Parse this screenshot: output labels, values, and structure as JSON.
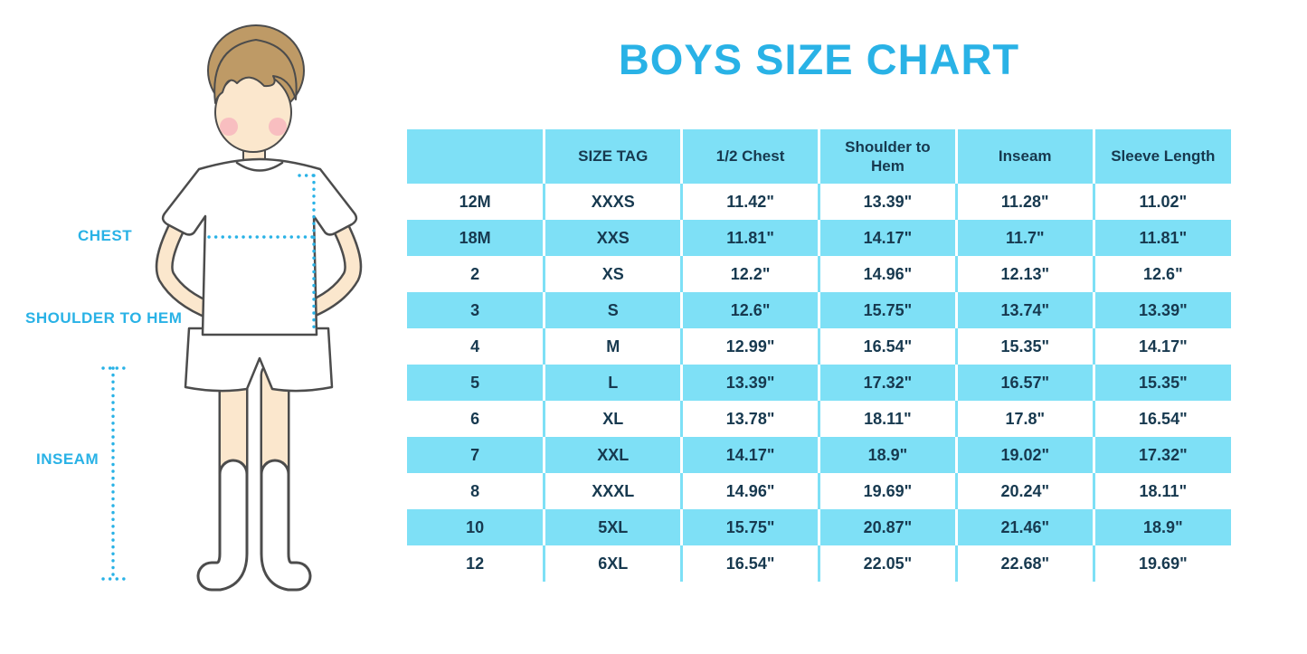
{
  "title": "BOYS SIZE CHART",
  "measurement_labels": {
    "chest": "CHEST",
    "shoulder_to_hem": "SHOULDER TO HEM",
    "inseam": "INSEAM"
  },
  "colors": {
    "accent": "#29B2E6",
    "row_blue": "#7EE0F6",
    "table_text": "#17394F"
  },
  "chart_data": {
    "type": "table",
    "title": "BOYS SIZE CHART",
    "columns": [
      "",
      "SIZE TAG",
      "1/2 Chest",
      "Shoulder to Hem",
      "Inseam",
      "Sleeve Length"
    ],
    "rows": [
      [
        "12M",
        "XXXS",
        "11.42\"",
        "13.39\"",
        "11.28\"",
        "11.02\""
      ],
      [
        "18M",
        "XXS",
        "11.81\"",
        "14.17\"",
        "11.7\"",
        "11.81\""
      ],
      [
        "2",
        "XS",
        "12.2\"",
        "14.96\"",
        "12.13\"",
        "12.6\""
      ],
      [
        "3",
        "S",
        "12.6\"",
        "15.75\"",
        "13.74\"",
        "13.39\""
      ],
      [
        "4",
        "M",
        "12.99\"",
        "16.54\"",
        "15.35\"",
        "14.17\""
      ],
      [
        "5",
        "L",
        "13.39\"",
        "17.32\"",
        "16.57\"",
        "15.35\""
      ],
      [
        "6",
        "XL",
        "13.78\"",
        "18.11\"",
        "17.8\"",
        "16.54\""
      ],
      [
        "7",
        "XXL",
        "14.17\"",
        "18.9\"",
        "19.02\"",
        "17.32\""
      ],
      [
        "8",
        "XXXL",
        "14.96\"",
        "19.69\"",
        "20.24\"",
        "18.11\""
      ],
      [
        "10",
        "5XL",
        "15.75\"",
        "20.87\"",
        "21.46\"",
        "18.9\""
      ],
      [
        "12",
        "6XL",
        "16.54\"",
        "22.05\"",
        "22.68\"",
        "19.69\""
      ]
    ]
  }
}
